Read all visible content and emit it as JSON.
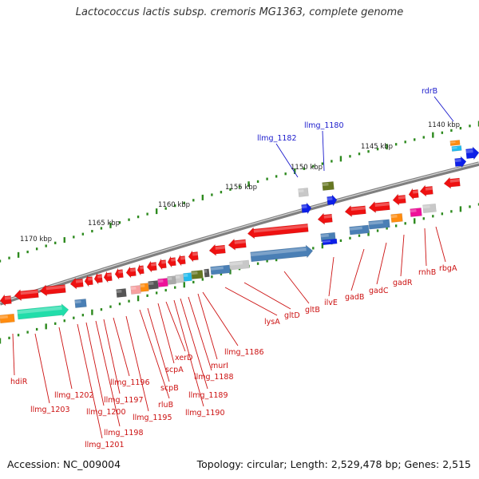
{
  "title": "Lactococcus lactis subsp. cremoris MG1363, complete genome",
  "accession_text": "Accession: NC_009004",
  "summary_text": "Topology: circular; Length: 2,529,478 bp; Genes: 2,515",
  "colors": {
    "backbone": "#7f7f7f",
    "tick": "#2d8a1e",
    "upper_label": "#1a1acc",
    "lower_label": "#cc1111",
    "leader": "#cc1111"
  },
  "ruler": [
    {
      "label": "1170 kbp"
    },
    {
      "label": "1165 kbp"
    },
    {
      "label": "1160 kbp"
    },
    {
      "label": "1155 kbp"
    },
    {
      "label": "1150 kbp"
    },
    {
      "label": "1145 kbp"
    },
    {
      "label": "1140 kbp"
    }
  ],
  "upper_gene_labels": [
    {
      "text": "rdrB"
    },
    {
      "text": "llmg_1180"
    },
    {
      "text": "llmg_1182"
    }
  ],
  "lower_gene_labels": [
    {
      "text": "hdiR"
    },
    {
      "text": "llmg_1203"
    },
    {
      "text": "llmg_1202"
    },
    {
      "text": "llmg_1201"
    },
    {
      "text": "llmg_1200"
    },
    {
      "text": "llmg_1198"
    },
    {
      "text": "llmg_1197"
    },
    {
      "text": "llmg_1196"
    },
    {
      "text": "llmg_1195"
    },
    {
      "text": "rluB"
    },
    {
      "text": "scpB"
    },
    {
      "text": "scpA"
    },
    {
      "text": "xerD"
    },
    {
      "text": "llmg_1190"
    },
    {
      "text": "llmg_1189"
    },
    {
      "text": "llmg_1188"
    },
    {
      "text": "murI"
    },
    {
      "text": "llmg_1186"
    },
    {
      "text": "lysA"
    },
    {
      "text": "gltD"
    },
    {
      "text": "gltB"
    },
    {
      "text": "ilvE"
    },
    {
      "text": "gadB"
    },
    {
      "text": "gadC"
    },
    {
      "text": "gadR"
    },
    {
      "text": "rnhB"
    },
    {
      "text": "rbgA"
    }
  ]
}
